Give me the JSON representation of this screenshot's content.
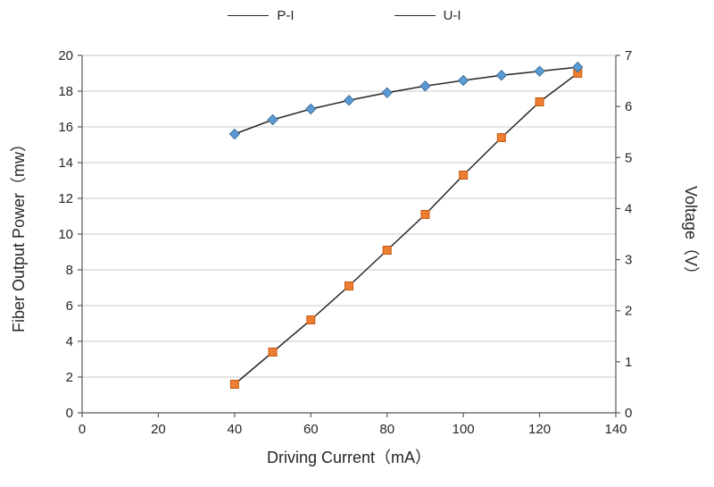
{
  "chart_data": {
    "type": "line",
    "title": "",
    "legend_position": "top",
    "grid": "horizontal",
    "x": [
      40,
      50,
      60,
      70,
      80,
      90,
      100,
      110,
      120,
      130
    ],
    "series": [
      {
        "name": "P-I",
        "axis": "left",
        "marker": "square",
        "marker_color": "#ED7D31",
        "marker_border": "#C55A11",
        "line_color": "#262626",
        "values": [
          1.6,
          3.4,
          5.2,
          7.1,
          9.1,
          11.1,
          13.3,
          15.4,
          17.4,
          19.0
        ]
      },
      {
        "name": "U-I",
        "axis": "right",
        "marker": "diamond",
        "marker_color": "#5B9BD5",
        "marker_border": "#41719C",
        "line_color": "#262626",
        "values": [
          5.46,
          5.74,
          5.95,
          6.12,
          6.27,
          6.4,
          6.51,
          6.61,
          6.69,
          6.77
        ]
      }
    ],
    "x_axis": {
      "label": "Driving Current（mA）",
      "min": 0,
      "max": 140,
      "step": 20
    },
    "y_left": {
      "label": "Fiber Output Power（mw）",
      "min": 0,
      "max": 20,
      "step": 2
    },
    "y_right": {
      "label": "Voltage（V）",
      "min": 0,
      "max": 7,
      "step": 1
    }
  }
}
